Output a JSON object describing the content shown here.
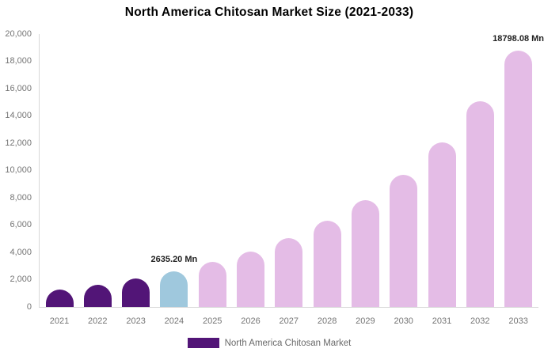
{
  "chart_data": {
    "type": "bar",
    "title": "North America Chitosan Market Size (2021-2033)",
    "categories": [
      "2021",
      "2022",
      "2023",
      "2024",
      "2025",
      "2026",
      "2027",
      "2028",
      "2029",
      "2030",
      "2031",
      "2032",
      "2033"
    ],
    "values": [
      1260,
      1610,
      2075,
      2635.2,
      3280,
      4080,
      5070,
      6310,
      7850,
      9700,
      12080,
      15100,
      18798.08
    ],
    "bar_colors": [
      "#521577",
      "#521577",
      "#521577",
      "#9FC8DD",
      "#E4BCE6",
      "#E4BCE6",
      "#E4BCE6",
      "#E4BCE6",
      "#E4BCE6",
      "#E4BCE6",
      "#E4BCE6",
      "#E4BCE6",
      "#E4BCE6"
    ],
    "ylim": [
      0,
      20000
    ],
    "ytick_step": 2000,
    "yticklabels": [
      "20,000",
      "18,000",
      "16,000",
      "14,000",
      "12,000",
      "10,000",
      "8,000",
      "6,000",
      "4,000",
      "2,000",
      "0"
    ],
    "grid": false,
    "legend_position": "bottom-center",
    "legend": {
      "label": "North America Chitosan Market",
      "swatch_color": "#521577"
    },
    "data_labels": [
      {
        "category": "2024",
        "text": "2635.20 Mn"
      },
      {
        "category": "2033",
        "text": "18798.08 Mn"
      }
    ],
    "colors": {
      "historical_bar": "#521577",
      "base_year_bar": "#9FC8DD",
      "forecast_bar": "#E4BCE6",
      "axis_line": "#d8d8d8",
      "tick_label": "#757575",
      "data_label": "#1f1f1f",
      "title": "#000000",
      "legend_text": "#6a6a6a"
    }
  }
}
